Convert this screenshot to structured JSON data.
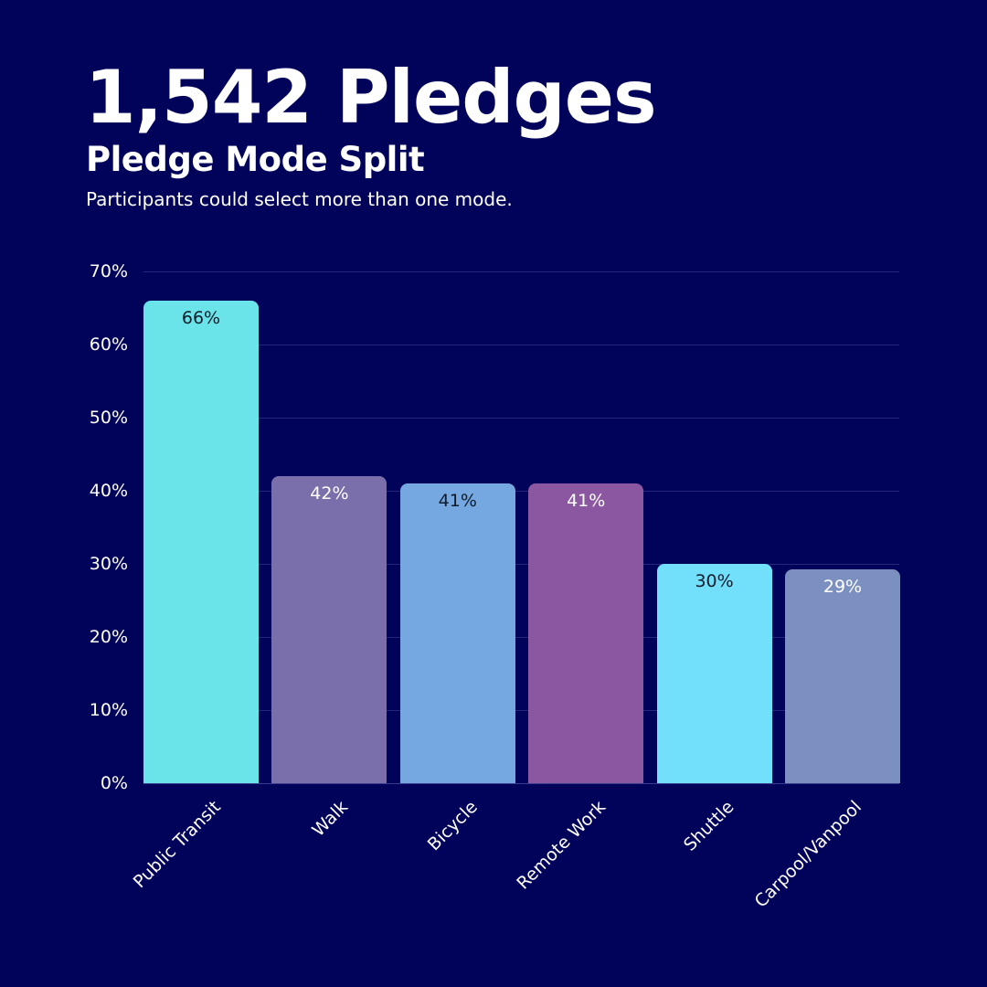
{
  "header": {
    "headline": "1,542 Pledges",
    "subtitle": "Pledge Mode Split",
    "note": "Participants could select more than one mode."
  },
  "colors": {
    "background": "#01025a",
    "gridline": "#25277a",
    "text": "#ffffff"
  },
  "chart_data": {
    "type": "bar",
    "title": "Pledge Mode Split",
    "subtitle": "Participants could select more than one mode.",
    "xlabel": "",
    "ylabel": "",
    "ylim": [
      0,
      70
    ],
    "yticks": [
      "0%",
      "10%",
      "20%",
      "30%",
      "40%",
      "50%",
      "60%",
      "70%"
    ],
    "grid": true,
    "legend": "none",
    "categories": [
      "Public Transit",
      "Walk",
      "Bicycle",
      "Remote Work",
      "Shuttle",
      "Carpool/Vanpool"
    ],
    "values": [
      66,
      42,
      41,
      41,
      30,
      29
    ],
    "value_labels": [
      "66%",
      "42%",
      "41%",
      "41%",
      "30%",
      "29%"
    ],
    "bar_colors": [
      "#6ae4e8",
      "#7a6fab",
      "#75a8e0",
      "#8b57a0",
      "#72dffb",
      "#7b8fc1"
    ],
    "label_colors": [
      "#0d1b2a",
      "#ffffff",
      "#0d1b2a",
      "#ffffff",
      "#0d1b2a",
      "#ffffff"
    ]
  }
}
